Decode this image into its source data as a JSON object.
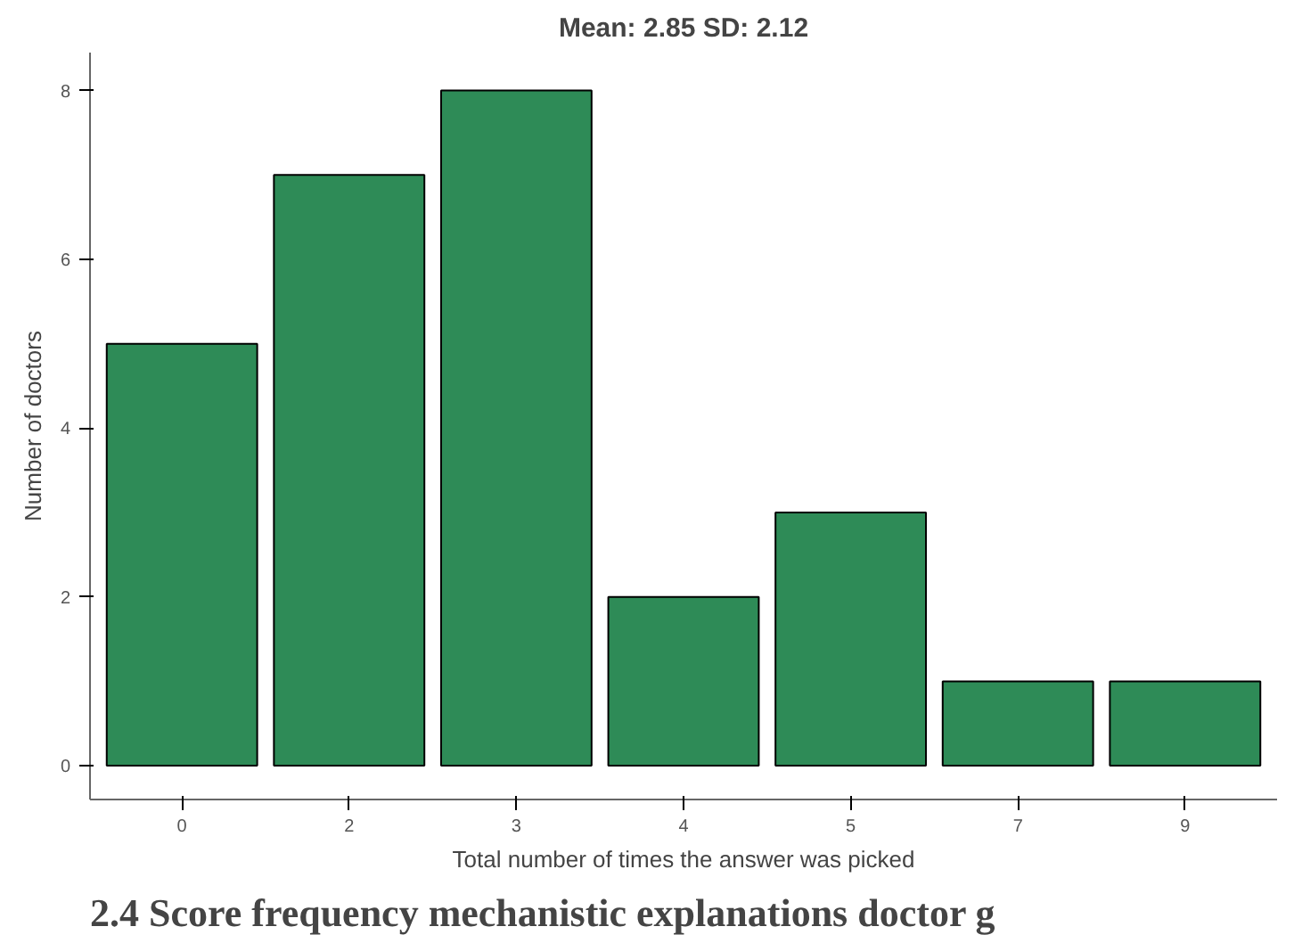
{
  "chart_data": {
    "type": "bar",
    "title": "Mean: 2.85 SD: 2.12",
    "xlabel": "Total number of times the answer was picked",
    "ylabel": "Number of doctors",
    "categories": [
      "0",
      "2",
      "3",
      "4",
      "5",
      "7",
      "9"
    ],
    "values": [
      5,
      7,
      8,
      2,
      3,
      1,
      1
    ],
    "color": "#2e8b57",
    "ylim": [
      -0.4,
      8.45
    ],
    "yticks": [
      0,
      2,
      4,
      6,
      8
    ],
    "grid": false,
    "annotations": [
      "2.4 Score frequency mechanistic explanations doctor g"
    ]
  }
}
